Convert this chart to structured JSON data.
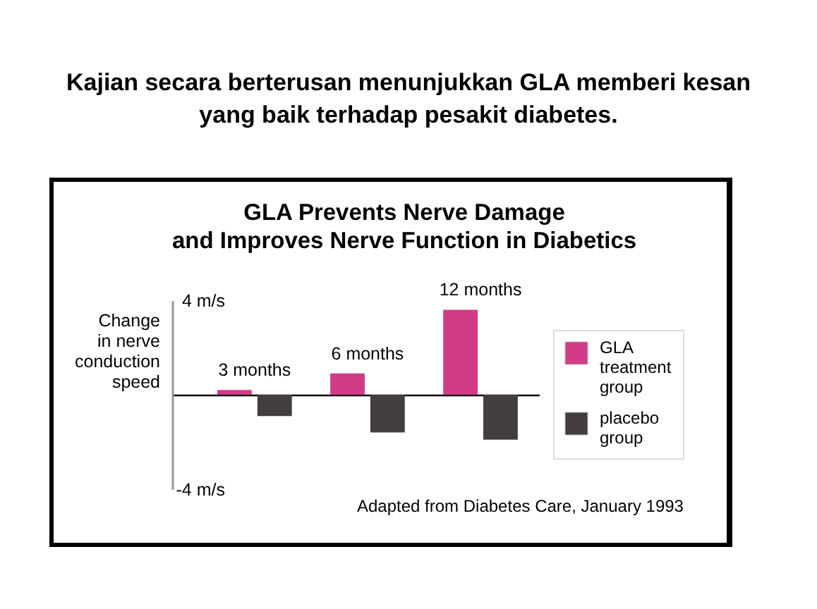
{
  "chart_data": {
    "type": "bar",
    "title": "Kajian secara berterusan menunjukkan GLA memberi kesan\nyang baik terhadap pesakit diabetes.",
    "subtitle": "GLA Prevents Nerve Damage\nand Improves Nerve Function in Diabetics",
    "ylabel": "Change\nin nerve\nconduction\nspeed",
    "categories": [
      "3 months",
      "6 months",
      "12 months"
    ],
    "series": [
      {
        "name": "GLA treatment group",
        "color": "#d23c86",
        "values": [
          0.2,
          0.9,
          3.6
        ]
      },
      {
        "name": "placebo group",
        "color": "#433d40",
        "values": [
          -0.9,
          -1.6,
          -1.9
        ]
      }
    ],
    "ylim": [
      -4,
      4
    ],
    "yticks": [
      {
        "value": 4,
        "label": "4 m/s"
      },
      {
        "value": -4,
        "label": "-4 m/s"
      }
    ],
    "legend": "right",
    "annotations": [
      "Adapted from Diabetes Care, January 1993"
    ]
  }
}
